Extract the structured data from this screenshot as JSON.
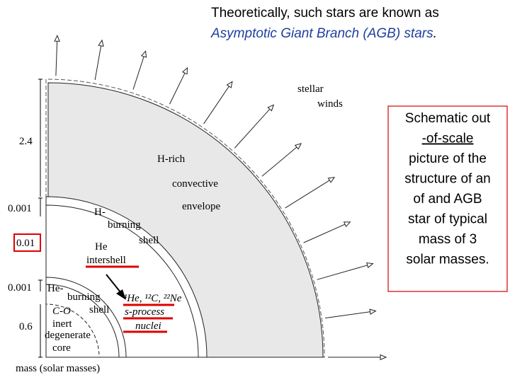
{
  "header": {
    "line1": "Theoretically, such stars are known as",
    "line2": "Asymptotic Giant Branch (AGB) stars",
    "line2_end": "."
  },
  "diagram": {
    "labels": [
      "stellar",
      "winds",
      "H-rich",
      "convective",
      "envelope",
      "H-",
      "burning",
      "shell",
      "He",
      "intershell",
      "He-",
      "burning",
      "shell",
      "C-O",
      "inert",
      "degenerate",
      "core"
    ],
    "isotopes": "⁴He, ¹²C, ²²Ne",
    "s_process": [
      "s-process",
      "nuclei"
    ],
    "mass_labels": [
      "2.4",
      "0.001",
      "0.01",
      "0.001",
      "0.6"
    ],
    "axis_label": "mass (solar masses)"
  },
  "note": {
    "lines": [
      "Schematic out",
      "-of-scale",
      "picture of the",
      "structure of an",
      "of and AGB",
      "star of typical",
      "mass of 3",
      "solar masses."
    ]
  }
}
